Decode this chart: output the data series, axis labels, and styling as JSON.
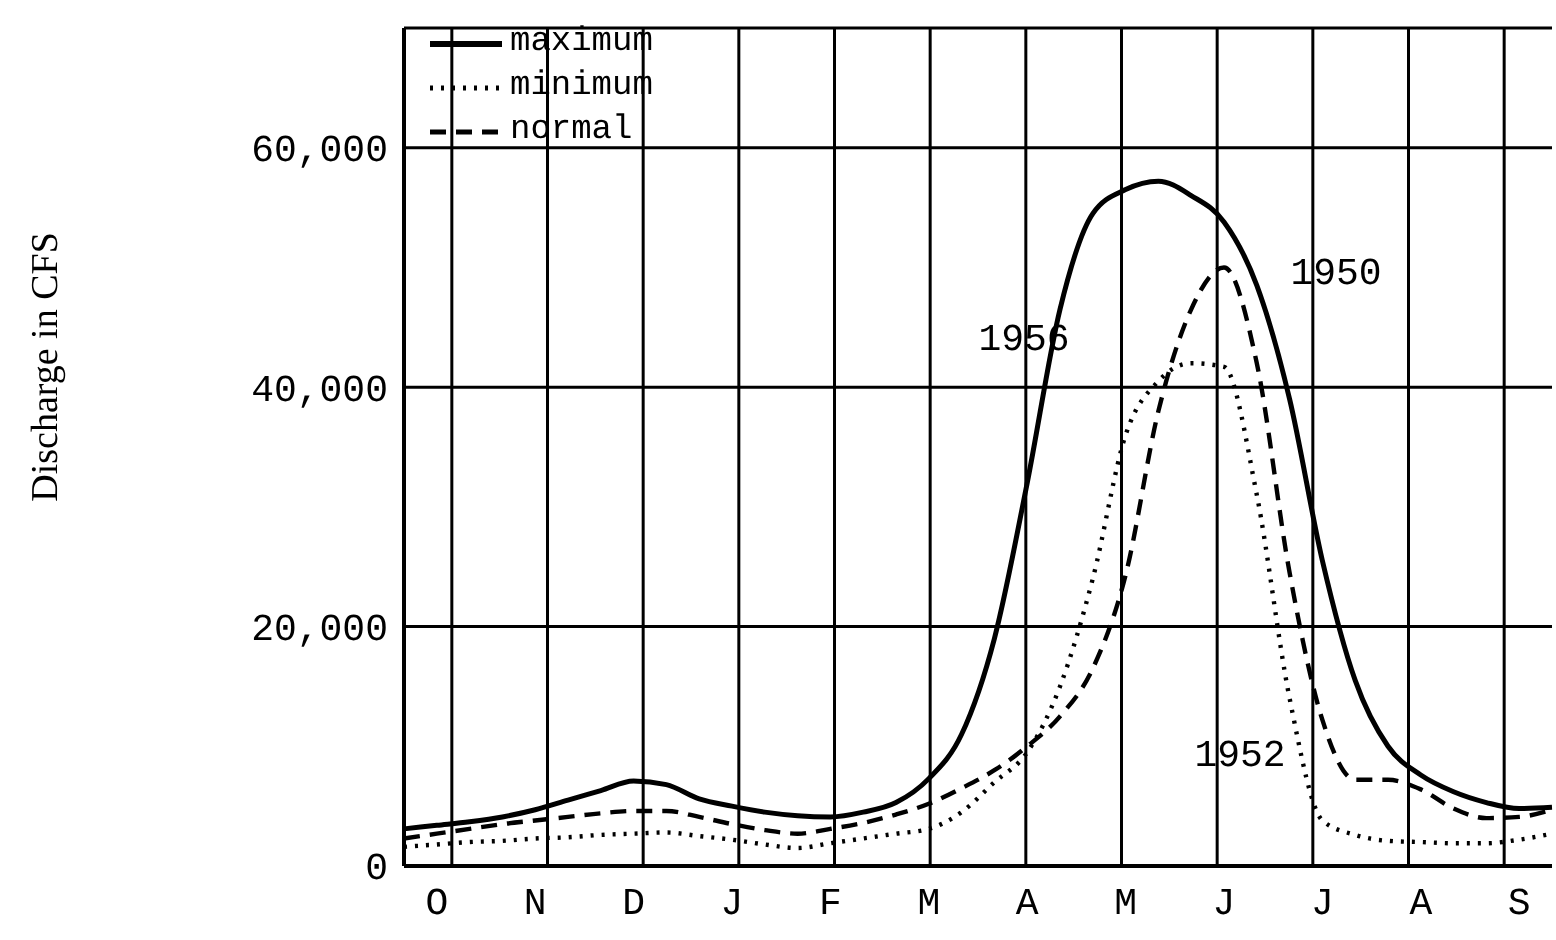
{
  "chart_data": {
    "type": "line",
    "ylabel": "Discharge in CFS",
    "categories": [
      null,
      "O",
      null,
      null,
      "N",
      null,
      null,
      "D",
      null,
      null,
      "J",
      null,
      null,
      "F",
      null,
      null,
      "M",
      null,
      null,
      "A",
      null,
      null,
      "M",
      null,
      null,
      "J",
      null,
      null,
      "J",
      null,
      null,
      "A",
      null,
      null,
      "S",
      null
    ],
    "ylim": [
      0,
      70000
    ],
    "yticks": [
      0,
      {
        "value": 20000,
        "label": "20,000"
      },
      {
        "value": 40000,
        "label": "40,000"
      },
      {
        "value": 60000,
        "label": "60,000"
      }
    ],
    "grid": true,
    "legend": "top left",
    "series": [
      {
        "name": "maximum",
        "color": "#000000",
        "line_style": "solid",
        "values": [
          3100,
          3400,
          3700,
          4100,
          4700,
          5500,
          6300,
          7100,
          6800,
          5600,
          5000,
          4500,
          4200,
          4100,
          4500,
          5300,
          7300,
          11000,
          19000,
          32000,
          46500,
          54500,
          56500,
          57200,
          56000,
          53800,
          48500,
          39000,
          25500,
          15500,
          10000,
          7600,
          6200,
          5300,
          4800,
          4900
        ]
      },
      {
        "name": "minimum",
        "color": "#000000",
        "line_style": "dotted",
        "values": [
          1600,
          1800,
          2000,
          2100,
          2300,
          2400,
          2600,
          2700,
          2800,
          2500,
          2200,
          1800,
          1500,
          1900,
          2300,
          2700,
          3100,
          4500,
          7000,
          9500,
          15000,
          24000,
          36000,
          40500,
          42000,
          41700,
          31000,
          14000,
          3800,
          2600,
          2100,
          2000,
          1900,
          1900,
          2200,
          2700
        ]
      },
      {
        "name": "normal",
        "color": "#000000",
        "line_style": "dashed",
        "values": [
          2300,
          2700,
          3100,
          3500,
          3800,
          4100,
          4400,
          4600,
          4600,
          4100,
          3500,
          3000,
          2700,
          3100,
          3600,
          4300,
          5200,
          6500,
          8000,
          10000,
          12500,
          16500,
          24300,
          38000,
          46500,
          50000,
          42000,
          24500,
          12200,
          7200,
          7200,
          6400,
          4800,
          4000,
          4100,
          4700
        ]
      }
    ],
    "annotations": [
      "1956",
      "1950",
      "1952"
    ]
  }
}
